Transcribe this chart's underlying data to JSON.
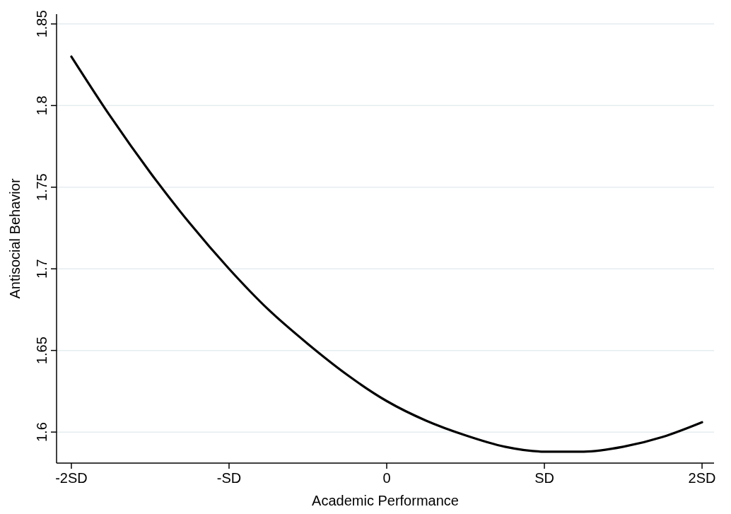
{
  "chart_data": {
    "type": "line",
    "xlabel": "Academic Performance",
    "ylabel": "Antisocial Behavior",
    "x": [
      -2,
      -1.75,
      -1.5,
      -1.25,
      -1,
      -0.75,
      -0.5,
      -0.25,
      0,
      0.25,
      0.5,
      0.75,
      1,
      1.25,
      1.5,
      1.75,
      2
    ],
    "series": [
      {
        "color": "#000000",
        "values": [
          1.83,
          1.793,
          1.759,
          1.728,
          1.7,
          1.675,
          1.654,
          1.635,
          1.619,
          1.607,
          1.598,
          1.591,
          1.588,
          1.588,
          1.591,
          1.597,
          1.606
        ]
      }
    ],
    "xlim": [
      -2.094,
      2.076
    ],
    "xticks": [
      {
        "value": -2,
        "label": "-2SD"
      },
      {
        "value": -1,
        "label": "-SD"
      },
      0,
      {
        "value": 1,
        "label": "SD"
      },
      {
        "value": 2,
        "label": "2SD"
      }
    ],
    "ylim": [
      1.581,
      1.856
    ],
    "yticks": [
      1.6,
      1.65,
      1.7,
      1.75,
      1.8,
      1.85
    ],
    "grid": "y",
    "marker": "none",
    "line_style": "solid"
  }
}
